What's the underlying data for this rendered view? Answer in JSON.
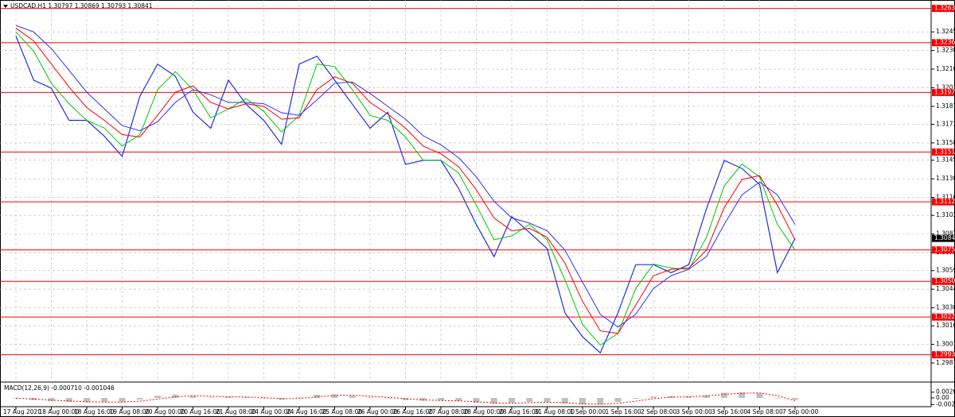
{
  "chart_data": [
    {
      "type": "line",
      "title": "USDCAD,H1  1.30797 1.30869 1.30793 1.30841",
      "categories": [
        "17 Aug 2020",
        null,
        "18 Aug 00:00",
        null,
        "18 Aug 16:00",
        null,
        "19 Aug 08:00",
        null,
        "20 Aug 00:00",
        null,
        "20 Aug 16:00",
        null,
        "21 Aug 08:00",
        null,
        "24 Aug 00:00",
        null,
        "24 Aug 16:00",
        null,
        "25 Aug 08:00",
        null,
        "26 Aug 00:00",
        null,
        "26 Aug 16:00",
        null,
        "27 Aug 08:00",
        null,
        "28 Aug 00:00",
        null,
        "28 Aug 16:00",
        null,
        "31 Aug 08:00",
        null,
        "1 Sep 00:00",
        null,
        "1 Sep 16:00",
        null,
        "2 Sep 08:00",
        null,
        "3 Sep 00:00",
        null,
        "3 Sep 16:00",
        null,
        "4 Sep 08:00",
        null,
        "7 Sep 00:00"
      ],
      "series": [
        {
          "color": "#1f2fe0",
          "values": [
            1.32418,
            1.32074,
            1.32011,
            1.31761,
            1.31761,
            1.31636,
            1.3148,
            1.31949,
            1.32199,
            1.32105,
            1.31824,
            1.31699,
            1.32074,
            1.31886,
            1.31761,
            1.31574,
            1.32199,
            1.32261,
            1.32074,
            1.31886,
            1.31699,
            1.31824,
            1.31418,
            1.31449,
            1.31449,
            1.3123,
            1.30949,
            1.30699,
            1.31011,
            1.30886,
            1.30761,
            1.30261,
            1.30074,
            1.29949,
            1.30261,
            1.30636,
            1.30636,
            1.30574,
            1.30636,
            1.31074,
            1.31449,
            1.31386,
            1.31261,
            1.30574,
            1.30841
          ]
        },
        {
          "color": "#00c800",
          "values": [
            1.3245,
            1.323,
            1.3205,
            1.3189,
            1.3176,
            1.317,
            1.3156,
            1.3165,
            1.32,
            1.3214,
            1.32,
            1.3178,
            1.3185,
            1.3193,
            1.3183,
            1.3167,
            1.318,
            1.322,
            1.3218,
            1.32,
            1.318,
            1.3176,
            1.3163,
            1.3145,
            1.3145,
            1.3135,
            1.311,
            1.3083,
            1.3086,
            1.3095,
            1.3083,
            1.3052,
            1.3017,
            1.3001,
            1.301,
            1.3045,
            1.3064,
            1.3061,
            1.306,
            1.3085,
            1.3125,
            1.3142,
            1.3132,
            1.3095,
            1.3075
          ]
        },
        {
          "color": "#ff0000",
          "values": [
            1.3248,
            1.3238,
            1.322,
            1.3202,
            1.3186,
            1.3176,
            1.3165,
            1.3163,
            1.318,
            1.3198,
            1.3203,
            1.319,
            1.3185,
            1.3189,
            1.3187,
            1.3177,
            1.3178,
            1.32,
            1.321,
            1.3205,
            1.319,
            1.3181,
            1.317,
            1.3156,
            1.315,
            1.314,
            1.3122,
            1.31,
            1.309,
            1.3092,
            1.3085,
            1.3065,
            1.3035,
            1.3012,
            1.301,
            1.3032,
            1.3055,
            1.306,
            1.3061,
            1.3075,
            1.3108,
            1.313,
            1.3133,
            1.311,
            1.3083
          ]
        },
        {
          "color": "#3030ff",
          "values": [
            1.325,
            1.3245,
            1.3232,
            1.3215,
            1.3198,
            1.3185,
            1.3172,
            1.3168,
            1.3175,
            1.319,
            1.32,
            1.3196,
            1.319,
            1.319,
            1.3189,
            1.3182,
            1.318,
            1.3192,
            1.3205,
            1.3206,
            1.3197,
            1.3187,
            1.3177,
            1.3164,
            1.3157,
            1.3147,
            1.3132,
            1.3113,
            1.31,
            1.3096,
            1.309,
            1.3075,
            1.305,
            1.3025,
            1.3015,
            1.3025,
            1.3045,
            1.3055,
            1.306,
            1.307,
            1.3095,
            1.3118,
            1.3128,
            1.3118,
            1.3095
          ]
        }
      ],
      "ylim": [
        1.2974,
        1.3268
      ],
      "yticks": [
        {
          "value": 1.3245,
          "label": "1.32450"
        },
        1.32305,
        {
          "value": 1.3216,
          "label": "1.32160"
        },
        1.32015,
        {
          "value": 1.3187,
          "label": "1.31870"
        },
        {
          "value": 1.3173,
          "label": "1.31730"
        },
        1.31585,
        {
          "value": 1.3145,
          "label": "1.31450"
        },
        1.31305,
        {
          "value": 1.3116,
          "label": "1.31160"
        },
        {
          "value": 1.3102,
          "label": "1.31020"
        },
        1.30875,
        {
          "value": 1.3073,
          "label": "1.30730"
        },
        {
          "value": 1.3059,
          "label": "1.30590"
        },
        1.30445,
        {
          "value": 1.303,
          "label": "1.30300"
        },
        {
          "value": 1.3016,
          "label": "1.30160"
        },
        1.30015,
        {
          "value": 1.2987,
          "label": "1.29870"
        }
      ],
      "levels": [
        1.32633,
        1.32366,
        1.31978,
        1.31514,
        1.31126,
        1.30751,
        1.30506,
        1.30228,
        1.29934
      ],
      "level_color": "#ff0000",
      "last_price": 1.30841,
      "grid": true
    },
    {
      "type": "bar",
      "title": "MACD(12,26,9) -0.000710 -0.001046",
      "series": [
        {
          "color": "#c0c0c0",
          "values": [
            -0.0002,
            -0.0008,
            -0.0012,
            -0.0015,
            -0.0016,
            -0.0015,
            -0.0016,
            -0.0006,
            0.0008,
            0.0012,
            0.0008,
            0.0002,
            0.0004,
            0.0003,
            -0.0002,
            -0.0006,
            0.0002,
            0.0012,
            0.0013,
            0.0008,
            0.0002,
            -0.0002,
            -0.0008,
            -0.001,
            -0.001,
            -0.0012,
            -0.0018,
            -0.0021,
            -0.0018,
            -0.0014,
            -0.0015,
            -0.002,
            -0.0024,
            -0.0024,
            -0.0015,
            -0.0003,
            0.0005,
            0.0006,
            0.0004,
            0.001,
            0.0019,
            0.002,
            0.0017,
            -0.0002,
            -0.0007
          ]
        },
        {
          "color": "#ff0000",
          "values": [
            -0.0001,
            -0.0004,
            -0.0008,
            -0.0011,
            -0.0014,
            -0.0015,
            -0.0015,
            -0.0012,
            -0.0004,
            0.0004,
            0.0008,
            0.0006,
            0.0004,
            0.0003,
            0.0001,
            -0.0003,
            -0.0002,
            0.0004,
            0.0009,
            0.001,
            0.0006,
            0.0002,
            -0.0003,
            -0.0007,
            -0.0009,
            -0.0011,
            -0.0014,
            -0.0018,
            -0.0019,
            -0.0017,
            -0.0016,
            -0.0017,
            -0.0021,
            -0.0023,
            -0.002,
            -0.0012,
            -0.0003,
            0.0003,
            0.0004,
            0.0007,
            0.0013,
            0.0017,
            0.0018,
            0.0008,
            -0.001
          ]
        }
      ],
      "ylim": [
        -0.0026,
        0.0023
      ],
      "yticks": [
        0.002087,
        {
          "value": 0,
          "label": "0.00"
        },
        -0.0024
      ]
    }
  ]
}
